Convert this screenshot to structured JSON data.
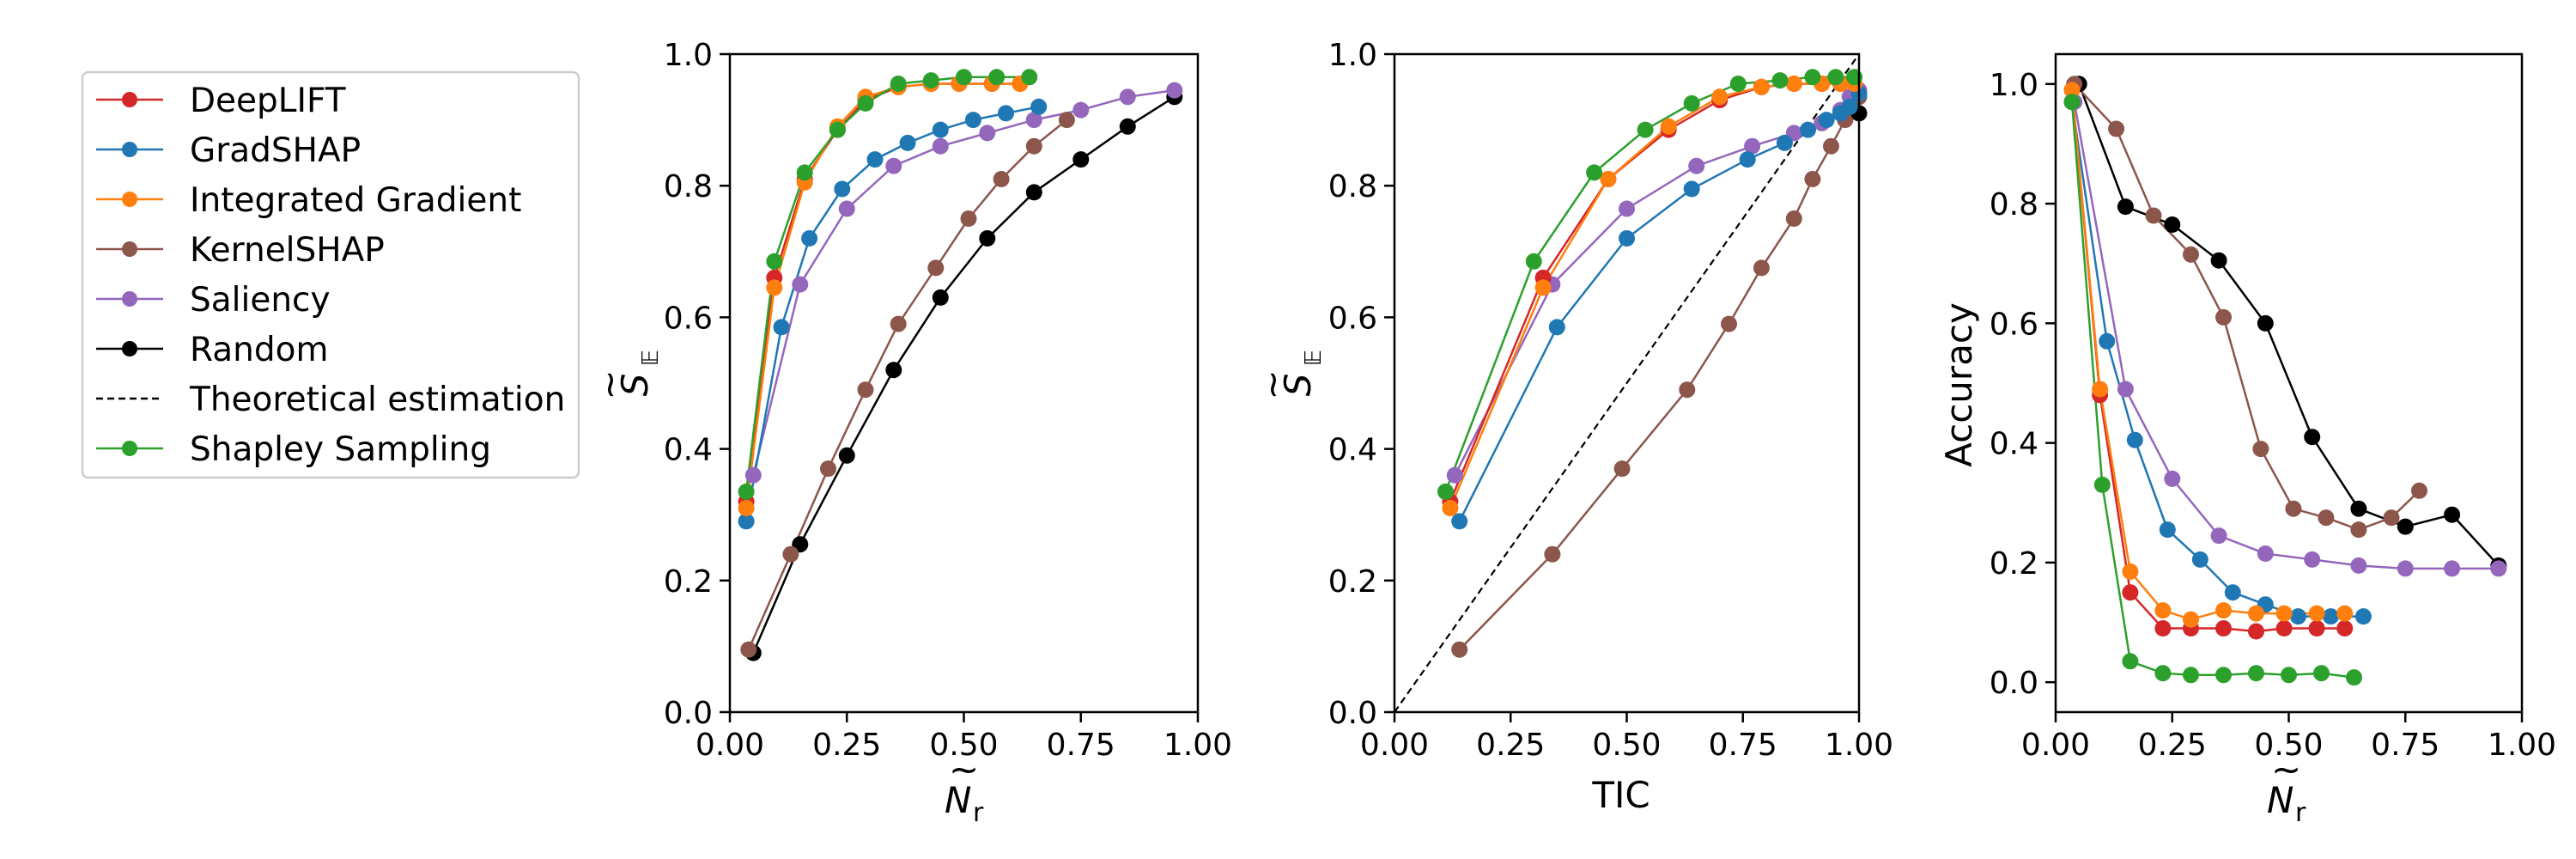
{
  "colors": {
    "DeepLIFT": "#d62728",
    "GradSHAP": "#1f77b4",
    "Integrated Gradient": "#ff7f0e",
    "KernelSHAP": "#8c564b",
    "Saliency": "#9467bd",
    "Random": "#000000",
    "Theoretical estimation": "#000000",
    "Shapley Sampling": "#2ca02c"
  },
  "legend": {
    "entries": [
      {
        "label": "DeepLIFT",
        "style": "marker"
      },
      {
        "label": "GradSHAP",
        "style": "marker"
      },
      {
        "label": "Integrated Gradient",
        "style": "marker"
      },
      {
        "label": "KernelSHAP",
        "style": "marker"
      },
      {
        "label": "Saliency",
        "style": "marker"
      },
      {
        "label": "Random",
        "style": "marker"
      },
      {
        "label": "Theoretical estimation",
        "style": "dashed"
      },
      {
        "label": "Shapley Sampling",
        "style": "marker"
      }
    ]
  },
  "chart_data": [
    {
      "type": "line",
      "xlabel_main": "N",
      "xlabel_sub": "r",
      "ylabel_main": "S",
      "ylabel_sub": "𝔼",
      "xlim": [
        0,
        1
      ],
      "ylim": [
        0,
        1
      ],
      "xticks": [
        "0.00",
        "0.25",
        "0.50",
        "0.75",
        "1.00"
      ],
      "xtick_values": [
        0,
        0.25,
        0.5,
        0.75,
        1.0
      ],
      "yticks": [
        "0.0",
        "0.2",
        "0.4",
        "0.6",
        "0.8",
        "1.0"
      ],
      "ytick_values": [
        0,
        0.2,
        0.4,
        0.6,
        0.8,
        1.0
      ],
      "series": [
        {
          "name": "Random",
          "x": [
            0.05,
            0.15,
            0.25,
            0.35,
            0.45,
            0.55,
            0.65,
            0.75,
            0.85,
            0.95
          ],
          "y": [
            0.09,
            0.255,
            0.39,
            0.52,
            0.63,
            0.72,
            0.79,
            0.84,
            0.89,
            0.935
          ]
        },
        {
          "name": "KernelSHAP",
          "x": [
            0.04,
            0.13,
            0.21,
            0.29,
            0.36,
            0.44,
            0.51,
            0.58,
            0.65,
            0.72
          ],
          "y": [
            0.095,
            0.24,
            0.37,
            0.49,
            0.59,
            0.675,
            0.75,
            0.81,
            0.86,
            0.9
          ]
        },
        {
          "name": "Saliency",
          "x": [
            0.05,
            0.15,
            0.25,
            0.35,
            0.45,
            0.55,
            0.65,
            0.75,
            0.85,
            0.95
          ],
          "y": [
            0.36,
            0.65,
            0.765,
            0.83,
            0.86,
            0.88,
            0.9,
            0.915,
            0.935,
            0.945
          ]
        },
        {
          "name": "GradSHAP",
          "x": [
            0.035,
            0.11,
            0.17,
            0.24,
            0.31,
            0.38,
            0.45,
            0.52,
            0.59,
            0.66
          ],
          "y": [
            0.29,
            0.585,
            0.72,
            0.795,
            0.84,
            0.865,
            0.885,
            0.9,
            0.91,
            0.92
          ]
        },
        {
          "name": "DeepLIFT",
          "x": [
            0.035,
            0.095,
            0.16,
            0.23,
            0.29,
            0.36,
            0.43,
            0.49,
            0.56,
            0.62
          ],
          "y": [
            0.32,
            0.66,
            0.81,
            0.885,
            0.93,
            0.95,
            0.955,
            0.955,
            0.955,
            0.955
          ]
        },
        {
          "name": "Integrated Gradient",
          "x": [
            0.035,
            0.095,
            0.16,
            0.23,
            0.29,
            0.36,
            0.43,
            0.49,
            0.56,
            0.62
          ],
          "y": [
            0.31,
            0.645,
            0.805,
            0.89,
            0.935,
            0.95,
            0.955,
            0.955,
            0.955,
            0.955
          ]
        },
        {
          "name": "Shapley Sampling",
          "x": [
            0.035,
            0.095,
            0.16,
            0.23,
            0.29,
            0.36,
            0.43,
            0.5,
            0.57,
            0.64
          ],
          "y": [
            0.335,
            0.685,
            0.82,
            0.885,
            0.925,
            0.955,
            0.96,
            0.965,
            0.965,
            0.965
          ]
        }
      ]
    },
    {
      "type": "line",
      "xlabel": "TIC",
      "ylabel_main": "S",
      "ylabel_sub": "𝔼",
      "xlim": [
        0,
        1
      ],
      "ylim": [
        0,
        1
      ],
      "xticks": [
        "0.00",
        "0.25",
        "0.50",
        "0.75",
        "1.00"
      ],
      "xtick_values": [
        0,
        0.25,
        0.5,
        0.75,
        1.0
      ],
      "yticks": [
        "0.0",
        "0.2",
        "0.4",
        "0.6",
        "0.8",
        "1.0"
      ],
      "ytick_values": [
        0,
        0.2,
        0.4,
        0.6,
        0.8,
        1.0
      ],
      "series": [
        {
          "name": "Theoretical estimation",
          "dashed": true,
          "x": [
            0,
            1
          ],
          "y": [
            0,
            1
          ]
        },
        {
          "name": "KernelSHAP",
          "x": [
            0.14,
            0.34,
            0.49,
            0.63,
            0.72,
            0.79,
            0.86,
            0.9,
            0.94,
            0.97,
            1.0
          ],
          "y": [
            0.095,
            0.24,
            0.37,
            0.49,
            0.59,
            0.675,
            0.75,
            0.81,
            0.86,
            0.9,
            0.935
          ]
        },
        {
          "name": "Random",
          "x": [
            1.0
          ],
          "y": [
            0.91
          ]
        },
        {
          "name": "Saliency",
          "x": [
            0.13,
            0.34,
            0.5,
            0.65,
            0.77,
            0.86,
            0.92,
            0.96,
            0.98,
            1.0
          ],
          "y": [
            0.36,
            0.65,
            0.765,
            0.83,
            0.86,
            0.88,
            0.895,
            0.915,
            0.935,
            0.945
          ]
        },
        {
          "name": "GradSHAP",
          "x": [
            0.14,
            0.35,
            0.5,
            0.64,
            0.76,
            0.84,
            0.89,
            0.93,
            0.96,
            0.98,
            1.0
          ],
          "y": [
            0.29,
            0.585,
            0.72,
            0.795,
            0.84,
            0.865,
            0.885,
            0.9,
            0.91,
            0.92,
            0.94
          ]
        },
        {
          "name": "DeepLIFT",
          "x": [
            0.12,
            0.32,
            0.46,
            0.59,
            0.7,
            0.79,
            0.86,
            0.92,
            0.96,
            0.99
          ],
          "y": [
            0.32,
            0.66,
            0.81,
            0.885,
            0.93,
            0.95,
            0.955,
            0.955,
            0.955,
            0.955
          ]
        },
        {
          "name": "Integrated Gradient",
          "x": [
            0.12,
            0.32,
            0.46,
            0.59,
            0.7,
            0.79,
            0.86,
            0.92,
            0.96,
            0.99
          ],
          "y": [
            0.31,
            0.645,
            0.81,
            0.89,
            0.935,
            0.95,
            0.955,
            0.955,
            0.955,
            0.955
          ]
        },
        {
          "name": "Shapley Sampling",
          "x": [
            0.11,
            0.3,
            0.43,
            0.54,
            0.64,
            0.74,
            0.83,
            0.9,
            0.95,
            0.99
          ],
          "y": [
            0.335,
            0.685,
            0.82,
            0.885,
            0.925,
            0.955,
            0.96,
            0.965,
            0.965,
            0.965
          ]
        }
      ]
    },
    {
      "type": "line",
      "xlabel_main": "N",
      "xlabel_sub": "r",
      "ylabel": "Accuracy",
      "xlim": [
        0,
        1
      ],
      "ylim": [
        -0.05,
        1.05
      ],
      "xticks": [
        "0.00",
        "0.25",
        "0.50",
        "0.75",
        "1.00"
      ],
      "xtick_values": [
        0,
        0.25,
        0.5,
        0.75,
        1.0
      ],
      "yticks": [
        "0.0",
        "0.2",
        "0.4",
        "0.6",
        "0.8",
        "1.0"
      ],
      "ytick_values": [
        0,
        0.2,
        0.4,
        0.6,
        0.8,
        1.0
      ],
      "series": [
        {
          "name": "Random",
          "x": [
            0.05,
            0.15,
            0.25,
            0.35,
            0.45,
            0.55,
            0.65,
            0.75,
            0.85,
            0.95
          ],
          "y": [
            1.0,
            0.795,
            0.765,
            0.705,
            0.6,
            0.41,
            0.29,
            0.26,
            0.28,
            0.195
          ]
        },
        {
          "name": "KernelSHAP",
          "x": [
            0.04,
            0.13,
            0.21,
            0.29,
            0.36,
            0.44,
            0.51,
            0.58,
            0.65,
            0.72,
            0.78
          ],
          "y": [
            1.0,
            0.925,
            0.78,
            0.715,
            0.61,
            0.39,
            0.29,
            0.275,
            0.255,
            0.275,
            0.32
          ]
        },
        {
          "name": "Saliency",
          "x": [
            0.04,
            0.15,
            0.25,
            0.35,
            0.45,
            0.55,
            0.65,
            0.75,
            0.85,
            0.95
          ],
          "y": [
            0.97,
            0.49,
            0.34,
            0.245,
            0.215,
            0.205,
            0.195,
            0.19,
            0.19,
            0.19
          ]
        },
        {
          "name": "GradSHAP",
          "x": [
            0.035,
            0.11,
            0.17,
            0.24,
            0.31,
            0.38,
            0.45,
            0.52,
            0.59,
            0.66
          ],
          "y": [
            0.97,
            0.57,
            0.405,
            0.255,
            0.205,
            0.15,
            0.13,
            0.11,
            0.11,
            0.11
          ]
        },
        {
          "name": "DeepLIFT",
          "x": [
            0.035,
            0.095,
            0.16,
            0.23,
            0.29,
            0.36,
            0.43,
            0.49,
            0.56,
            0.62
          ],
          "y": [
            0.99,
            0.48,
            0.15,
            0.09,
            0.09,
            0.09,
            0.085,
            0.09,
            0.09,
            0.09
          ]
        },
        {
          "name": "Integrated Gradient",
          "x": [
            0.035,
            0.095,
            0.16,
            0.23,
            0.29,
            0.36,
            0.43,
            0.49,
            0.56,
            0.62
          ],
          "y": [
            0.99,
            0.49,
            0.185,
            0.12,
            0.105,
            0.12,
            0.115,
            0.115,
            0.115,
            0.115
          ]
        },
        {
          "name": "Shapley Sampling",
          "x": [
            0.035,
            0.1,
            0.16,
            0.23,
            0.29,
            0.36,
            0.43,
            0.5,
            0.57,
            0.64
          ],
          "y": [
            0.97,
            0.33,
            0.035,
            0.015,
            0.012,
            0.012,
            0.015,
            0.012,
            0.015,
            0.008
          ]
        }
      ]
    }
  ]
}
